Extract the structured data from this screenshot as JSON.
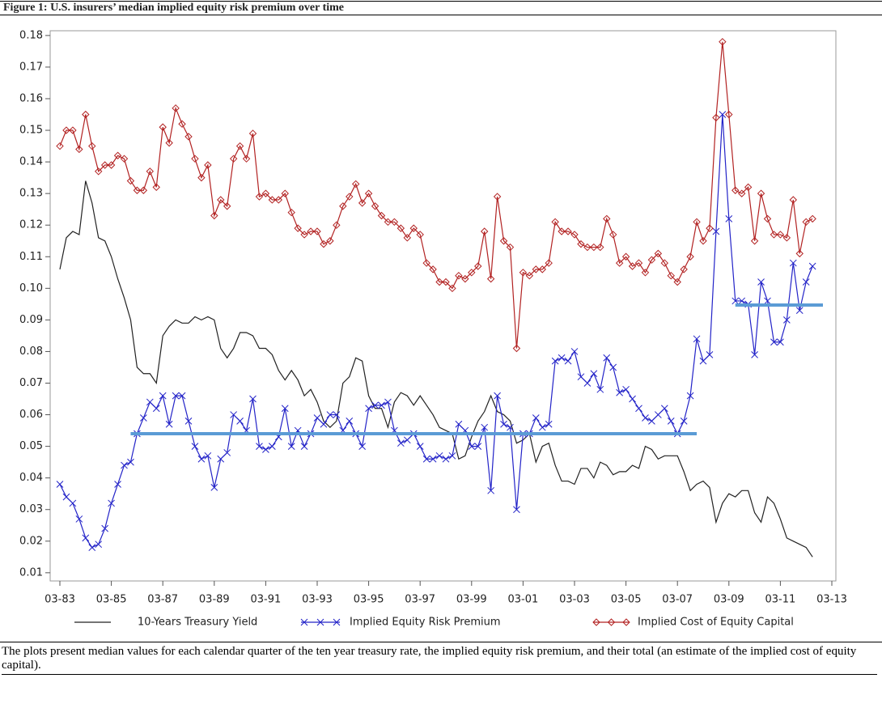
{
  "chart_data": {
    "type": "line",
    "title": "Figure 1: U.S. insurers’ median implied equity risk premium over time",
    "note": "The plots present median values for each calendar quarter of the ten year treasury rate, the implied equity risk premium, and their total (an estimate of the implied cost of equity capital).",
    "x": [
      "03-83",
      "06-83",
      "09-83",
      "12-83",
      "03-84",
      "06-84",
      "09-84",
      "12-84",
      "03-85",
      "06-85",
      "09-85",
      "12-85",
      "03-86",
      "06-86",
      "09-86",
      "12-86",
      "03-87",
      "06-87",
      "09-87",
      "12-87",
      "03-88",
      "06-88",
      "09-88",
      "12-88",
      "03-89",
      "06-89",
      "09-89",
      "12-89",
      "03-90",
      "06-90",
      "09-90",
      "12-90",
      "03-91",
      "06-91",
      "09-91",
      "12-91",
      "03-92",
      "06-92",
      "09-92",
      "12-92",
      "03-93",
      "06-93",
      "09-93",
      "12-93",
      "03-94",
      "06-94",
      "09-94",
      "12-94",
      "03-95",
      "06-95",
      "09-95",
      "12-95",
      "03-96",
      "06-96",
      "09-96",
      "12-96",
      "03-97",
      "06-97",
      "09-97",
      "12-97",
      "03-98",
      "06-98",
      "09-98",
      "12-98",
      "03-99",
      "06-99",
      "09-99",
      "12-99",
      "03-00",
      "06-00",
      "09-00",
      "12-00",
      "03-01",
      "06-01",
      "09-01",
      "12-01",
      "03-02",
      "06-02",
      "09-02",
      "12-02",
      "03-03",
      "06-03",
      "09-03",
      "12-03",
      "03-04",
      "06-04",
      "09-04",
      "12-04",
      "03-05",
      "06-05",
      "09-05",
      "12-05",
      "03-06",
      "06-06",
      "09-06",
      "12-06",
      "03-07",
      "06-07",
      "09-07",
      "12-07",
      "03-08",
      "06-08",
      "09-08",
      "12-08",
      "03-09",
      "06-09",
      "09-09",
      "12-09",
      "03-10",
      "06-10",
      "09-10",
      "12-10",
      "03-11",
      "06-11",
      "09-11",
      "12-11",
      "03-12",
      "06-12"
    ],
    "series": [
      {
        "name": "10-Years Treasury Yield",
        "color": "#222222",
        "marker": "none",
        "values": [
          0.106,
          0.116,
          0.118,
          0.117,
          0.134,
          0.127,
          0.116,
          0.115,
          0.11,
          0.103,
          0.097,
          0.09,
          0.075,
          0.073,
          0.073,
          0.07,
          0.085,
          0.088,
          0.09,
          0.089,
          0.089,
          0.091,
          0.09,
          0.091,
          0.09,
          0.081,
          0.078,
          0.081,
          0.086,
          0.086,
          0.085,
          0.081,
          0.081,
          0.079,
          0.074,
          0.071,
          0.074,
          0.071,
          0.066,
          0.068,
          0.064,
          0.058,
          0.056,
          0.058,
          0.07,
          0.072,
          0.078,
          0.077,
          0.066,
          0.062,
          0.062,
          0.056,
          0.064,
          0.067,
          0.066,
          0.063,
          0.066,
          0.063,
          0.06,
          0.056,
          0.055,
          0.054,
          0.046,
          0.047,
          0.053,
          0.058,
          0.061,
          0.066,
          0.061,
          0.06,
          0.058,
          0.051,
          0.052,
          0.054,
          0.045,
          0.05,
          0.051,
          0.044,
          0.039,
          0.039,
          0.038,
          0.043,
          0.043,
          0.04,
          0.045,
          0.044,
          0.041,
          0.042,
          0.042,
          0.044,
          0.043,
          0.05,
          0.049,
          0.046,
          0.047,
          0.047,
          0.047,
          0.042,
          0.036,
          0.038,
          0.039,
          0.037,
          0.026,
          0.032,
          0.035,
          0.034,
          0.036,
          0.036,
          0.029,
          0.026,
          0.034,
          0.032,
          0.027,
          0.021,
          0.02,
          0.019,
          0.018,
          0.015
        ]
      },
      {
        "name": "Implied Equity Risk Premium",
        "color": "#2323c8",
        "marker": "x",
        "values": [
          0.038,
          0.034,
          0.032,
          0.027,
          0.021,
          0.018,
          0.019,
          0.024,
          0.032,
          0.038,
          0.044,
          0.045,
          0.054,
          0.059,
          0.064,
          0.062,
          0.066,
          0.057,
          0.066,
          0.066,
          0.058,
          0.05,
          0.046,
          0.047,
          0.037,
          0.046,
          0.048,
          0.06,
          0.058,
          0.055,
          0.065,
          0.05,
          0.049,
          0.05,
          0.053,
          0.062,
          0.05,
          0.055,
          0.05,
          0.054,
          0.059,
          0.057,
          0.06,
          0.06,
          0.055,
          0.058,
          0.054,
          0.05,
          0.062,
          0.063,
          0.063,
          0.064,
          0.055,
          0.051,
          0.052,
          0.054,
          0.05,
          0.046,
          0.046,
          0.047,
          0.046,
          0.047,
          0.057,
          0.055,
          0.05,
          0.05,
          0.056,
          0.036,
          0.066,
          0.057,
          0.056,
          0.03,
          0.054,
          0.054,
          0.059,
          0.056,
          0.057,
          0.077,
          0.078,
          0.077,
          0.08,
          0.072,
          0.07,
          0.073,
          0.068,
          0.078,
          0.075,
          0.067,
          0.068,
          0.065,
          0.062,
          0.059,
          0.058,
          0.06,
          0.062,
          0.058,
          0.054,
          0.058,
          0.066,
          0.084,
          0.077,
          0.079,
          0.118,
          0.155,
          0.122,
          0.096,
          0.096,
          0.095,
          0.079,
          0.102,
          0.096,
          0.083,
          0.083,
          0.09,
          0.108,
          0.093,
          0.102,
          0.107
        ]
      },
      {
        "name": "Implied Cost of Equity Capital",
        "color": "#b22222",
        "marker": "diamond",
        "values": [
          0.145,
          0.15,
          0.15,
          0.144,
          0.155,
          0.145,
          0.137,
          0.139,
          0.139,
          0.142,
          0.141,
          0.134,
          0.131,
          0.131,
          0.137,
          0.132,
          0.151,
          0.146,
          0.157,
          0.152,
          0.148,
          0.141,
          0.135,
          0.139,
          0.123,
          0.128,
          0.126,
          0.141,
          0.145,
          0.141,
          0.149,
          0.129,
          0.13,
          0.128,
          0.128,
          0.13,
          0.124,
          0.119,
          0.117,
          0.118,
          0.118,
          0.114,
          0.115,
          0.12,
          0.126,
          0.129,
          0.133,
          0.127,
          0.13,
          0.126,
          0.123,
          0.121,
          0.121,
          0.119,
          0.116,
          0.119,
          0.117,
          0.108,
          0.106,
          0.102,
          0.102,
          0.1,
          0.104,
          0.103,
          0.105,
          0.107,
          0.118,
          0.103,
          0.129,
          0.115,
          0.113,
          0.081,
          0.105,
          0.104,
          0.106,
          0.106,
          0.108,
          0.121,
          0.118,
          0.118,
          0.117,
          0.114,
          0.113,
          0.113,
          0.113,
          0.122,
          0.117,
          0.108,
          0.11,
          0.107,
          0.108,
          0.105,
          0.109,
          0.111,
          0.108,
          0.104,
          0.102,
          0.106,
          0.11,
          0.121,
          0.115,
          0.119,
          0.154,
          0.178,
          0.155,
          0.131,
          0.13,
          0.132,
          0.115,
          0.13,
          0.122,
          0.117,
          0.117,
          0.116,
          0.128,
          0.111,
          0.121,
          0.122
        ]
      }
    ],
    "reference_lines": [
      {
        "value": 0.054,
        "start": "12-85",
        "end": "12-07",
        "color": "#5b9bd5"
      },
      {
        "value": 0.0947,
        "start": "06-09",
        "end": "09-13",
        "color": "#5b9bd5"
      }
    ],
    "xticks": [
      "03-83",
      "03-85",
      "03-87",
      "03-89",
      "03-91",
      "03-93",
      "03-95",
      "03-97",
      "03-99",
      "03-01",
      "03-03",
      "03-05",
      "03-07",
      "03-09",
      "03-11",
      "03-13"
    ],
    "ylim": [
      0.0074,
      0.1815
    ],
    "yticks": [
      0.01,
      0.02,
      0.03,
      0.04,
      0.05,
      0.06,
      0.07,
      0.08,
      0.09,
      {
        "value": 0.1,
        "label": "0.10"
      },
      0.11,
      0.12,
      0.13,
      0.14,
      0.15,
      0.16,
      0.17,
      0.18
    ]
  }
}
